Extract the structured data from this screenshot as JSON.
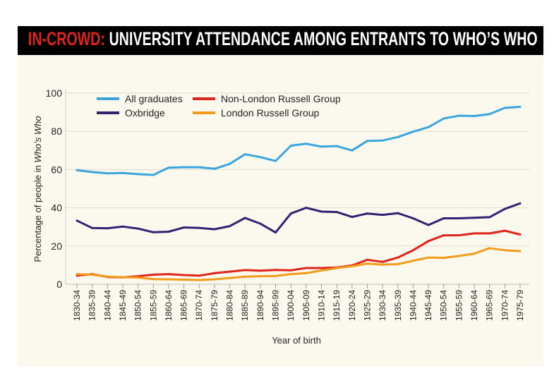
{
  "title": {
    "kicker": "IN-CROWD:",
    "text": " UNIVERSITY ATTENDANCE AMONG ENTRANTS TO WHO’S WHO"
  },
  "chart_data": {
    "type": "line",
    "title": "IN-CROWD: UNIVERSITY ATTENDANCE AMONG ENTRANTS TO WHO’S WHO",
    "xlabel": "Year of birth",
    "ylabel_prefix": "Percentage of people in ",
    "ylabel_italic": "Who’s Who",
    "ylim": [
      0,
      100
    ],
    "yticks": [
      0,
      20,
      40,
      60,
      80,
      100
    ],
    "grid": true,
    "legend_position": "top-left",
    "categories": [
      "1830-34",
      "1835-39",
      "1840-44",
      "1845-49",
      "1850-54",
      "1855-59",
      "1860-64",
      "1865-69",
      "1870-74",
      "1875-79",
      "1880-84",
      "1885-89",
      "1890-94",
      "1895-99",
      "1900-04",
      "1905-09",
      "1910-14",
      "1915-19",
      "1920-24",
      "1925-29",
      "1930-34",
      "1935-39",
      "1940-44",
      "1945-49",
      "1950-54",
      "1955-59",
      "1960-64",
      "1965-69",
      "1970-74",
      "1975-79"
    ],
    "series": [
      {
        "name": "All graduates",
        "color": "#3aa6dd",
        "values": [
          59.7,
          58.7,
          58,
          58.2,
          57.6,
          57.2,
          61,
          61.2,
          61.2,
          60.4,
          63,
          68,
          66.5,
          64.5,
          72.5,
          73.5,
          72,
          72.3,
          70,
          75,
          75.2,
          77,
          79.8,
          82.2,
          86.7,
          88.2,
          88,
          89,
          92.3,
          92.8
        ]
      },
      {
        "name": "Oxbridge",
        "color": "#2e2472",
        "values": [
          33.3,
          29.4,
          29.3,
          30.2,
          29.1,
          27.2,
          27.5,
          29.7,
          29.5,
          28.8,
          30.4,
          34.7,
          31.7,
          27.1,
          37,
          40,
          38,
          37.8,
          35.2,
          37,
          36.3,
          37.2,
          34.5,
          31,
          34.5,
          34.5,
          34.8,
          35.1,
          39.4,
          42.3
        ]
      },
      {
        "name": "Non-London Russell Group",
        "color": "#e2231a",
        "values": [
          4.5,
          5.3,
          3.8,
          3.6,
          4.2,
          5,
          5.3,
          4.8,
          4.5,
          5.8,
          6.6,
          7.4,
          7.1,
          7.5,
          7.3,
          8.5,
          8.5,
          8.8,
          9.8,
          12.8,
          11.7,
          14,
          17.8,
          22.6,
          25.6,
          25.6,
          26.6,
          26.6,
          28,
          26
        ]
      },
      {
        "name": "London Russell Group",
        "color": "#f39c1a",
        "values": [
          5.3,
          5,
          4,
          3.7,
          3.5,
          2.7,
          2.6,
          2.4,
          2.2,
          2.6,
          3.3,
          4,
          4.2,
          4.3,
          5.3,
          5.8,
          7.2,
          8.5,
          9.4,
          10.8,
          10.3,
          10.5,
          12.3,
          14,
          13.8,
          14.8,
          16,
          18.9,
          17.8,
          17.3
        ]
      }
    ]
  }
}
